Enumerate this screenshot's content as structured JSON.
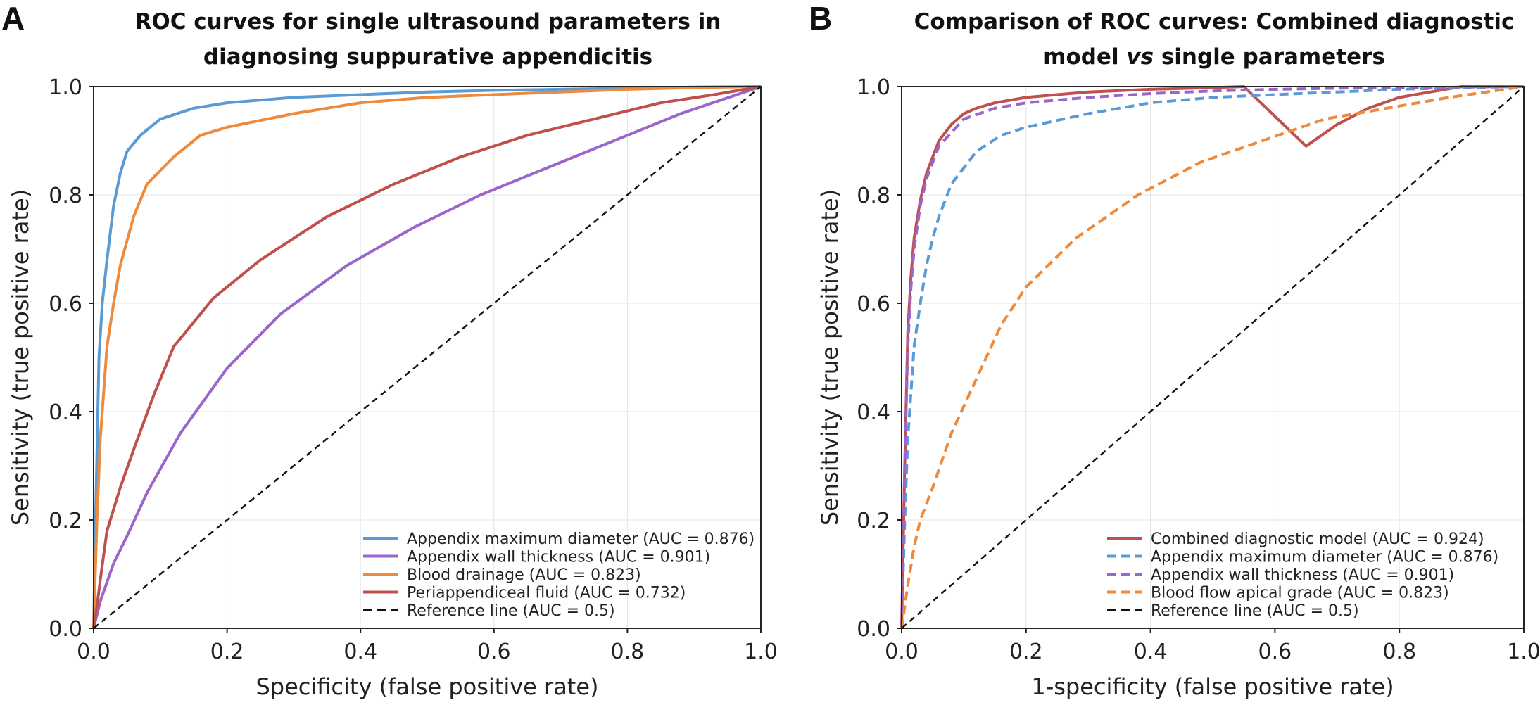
{
  "chart_data": [
    {
      "type": "line",
      "panel_label": "A",
      "title_lines": [
        "ROC curves for single ultrasound parameters in",
        "diagnosing suppurative appendicitis"
      ],
      "xlabel": "Specificity (false positive rate)",
      "ylabel": "Sensitivity (true positive rate)",
      "xlim": [
        0,
        1
      ],
      "ylim": [
        0,
        1
      ],
      "xticks": [
        "0.0",
        "0.2",
        "0.4",
        "0.6",
        "0.8",
        "1.0"
      ],
      "yticks": [
        "0.0",
        "0.2",
        "0.4",
        "0.6",
        "0.8",
        "1.0"
      ],
      "grid": true,
      "legend_position": "lower-right",
      "series": [
        {
          "name": "Appendix maximum diameter (AUC = 0.876)",
          "color": "#5b9bd5",
          "dash": "solid",
          "x": [
            0,
            0.003,
            0.008,
            0.013,
            0.02,
            0.03,
            0.04,
            0.05,
            0.07,
            0.1,
            0.15,
            0.2,
            0.3,
            0.4,
            0.5,
            0.6,
            0.7,
            0.8,
            0.9,
            1.0
          ],
          "y": [
            0,
            0.2,
            0.5,
            0.6,
            0.68,
            0.78,
            0.84,
            0.88,
            0.91,
            0.94,
            0.96,
            0.97,
            0.98,
            0.985,
            0.99,
            0.993,
            0.995,
            0.997,
            0.999,
            1.0
          ]
        },
        {
          "name": "Appendix wall thickness (AUC = 0.901)",
          "color": "#9966cc",
          "dash": "solid",
          "x": [
            0,
            0.01,
            0.03,
            0.05,
            0.08,
            0.13,
            0.2,
            0.28,
            0.38,
            0.48,
            0.58,
            0.68,
            0.78,
            0.88,
            1.0
          ],
          "y": [
            0,
            0.05,
            0.12,
            0.17,
            0.25,
            0.36,
            0.48,
            0.58,
            0.67,
            0.74,
            0.8,
            0.85,
            0.9,
            0.95,
            1.0
          ]
        },
        {
          "name": "Blood drainage (AUC = 0.823)",
          "color": "#ee8a3c",
          "dash": "solid",
          "x": [
            0,
            0.005,
            0.01,
            0.02,
            0.03,
            0.04,
            0.06,
            0.08,
            0.12,
            0.16,
            0.2,
            0.3,
            0.4,
            0.5,
            0.6,
            0.7,
            0.8,
            0.9,
            1.0
          ],
          "y": [
            0,
            0.2,
            0.35,
            0.52,
            0.6,
            0.67,
            0.76,
            0.82,
            0.87,
            0.91,
            0.925,
            0.95,
            0.97,
            0.98,
            0.985,
            0.99,
            0.995,
            0.998,
            1.0
          ]
        },
        {
          "name": "Periappendiceal fluid (AUC = 0.732)",
          "color": "#c0504d",
          "dash": "solid",
          "x": [
            0,
            0.005,
            0.01,
            0.02,
            0.04,
            0.06,
            0.09,
            0.12,
            0.18,
            0.25,
            0.35,
            0.45,
            0.55,
            0.65,
            0.75,
            0.85,
            0.93,
            1.0
          ],
          "y": [
            0,
            0.04,
            0.09,
            0.18,
            0.26,
            0.33,
            0.43,
            0.52,
            0.61,
            0.68,
            0.76,
            0.82,
            0.87,
            0.91,
            0.94,
            0.97,
            0.985,
            1.0
          ]
        },
        {
          "name": "Reference line (AUC = 0.5)",
          "color": "#111111",
          "dash": "dashed",
          "x": [
            0,
            1
          ],
          "y": [
            0,
            1
          ]
        }
      ]
    },
    {
      "type": "line",
      "panel_label": "B",
      "title_lines": [
        "Comparison of ROC curves: Combined diagnostic",
        "model vs single parameters"
      ],
      "title_italic_word": "vs",
      "xlabel": "1-specificity (false positive rate)",
      "ylabel": "Sensitivity (true positive rate)",
      "xlim": [
        0,
        1
      ],
      "ylim": [
        0,
        1
      ],
      "xticks": [
        "0.0",
        "0.2",
        "0.4",
        "0.6",
        "0.8",
        "1.0"
      ],
      "yticks": [
        "0.0",
        "0.2",
        "0.4",
        "0.6",
        "0.8",
        "1.0"
      ],
      "grid": true,
      "legend_position": "lower-right",
      "series": [
        {
          "name": "Combined diagnostic model (AUC = 0.924)",
          "color": "#c0504d",
          "dash": "solid",
          "x": [
            0,
            0.005,
            0.01,
            0.015,
            0.02,
            0.03,
            0.04,
            0.05,
            0.06,
            0.08,
            0.1,
            0.12,
            0.15,
            0.2,
            0.3,
            0.4,
            0.5,
            0.55,
            0.65,
            0.7,
            0.75,
            0.8,
            0.85,
            0.9,
            1.0
          ],
          "y": [
            0,
            0.3,
            0.55,
            0.65,
            0.72,
            0.79,
            0.84,
            0.87,
            0.9,
            0.93,
            0.95,
            0.96,
            0.97,
            0.98,
            0.99,
            0.995,
            0.998,
            1.0,
            0.89,
            0.93,
            0.96,
            0.98,
            0.99,
            1.0,
            1.0
          ]
        },
        {
          "name": "Appendix maximum diameter (AUC = 0.876)",
          "color": "#5b9bd5",
          "dash": "dashed",
          "x": [
            0,
            0.005,
            0.01,
            0.02,
            0.03,
            0.04,
            0.05,
            0.06,
            0.08,
            0.1,
            0.12,
            0.16,
            0.2,
            0.3,
            0.4,
            0.5,
            0.6,
            0.7,
            0.8,
            0.9,
            1.0
          ],
          "y": [
            0,
            0.2,
            0.35,
            0.52,
            0.6,
            0.67,
            0.72,
            0.76,
            0.82,
            0.85,
            0.88,
            0.91,
            0.925,
            0.95,
            0.97,
            0.98,
            0.985,
            0.99,
            0.995,
            0.998,
            1.0
          ]
        },
        {
          "name": "Appendix wall thickness (AUC = 0.901)",
          "color": "#9966cc",
          "dash": "dashed",
          "x": [
            0,
            0.005,
            0.01,
            0.015,
            0.02,
            0.03,
            0.04,
            0.05,
            0.06,
            0.08,
            0.1,
            0.15,
            0.2,
            0.3,
            0.4,
            0.5,
            0.6,
            0.7,
            0.8,
            0.9,
            1.0
          ],
          "y": [
            0,
            0.3,
            0.52,
            0.63,
            0.7,
            0.78,
            0.83,
            0.86,
            0.89,
            0.915,
            0.94,
            0.96,
            0.97,
            0.98,
            0.987,
            0.992,
            0.995,
            0.997,
            0.998,
            0.999,
            1.0
          ]
        },
        {
          "name": "Blood flow apical grade (AUC = 0.823)",
          "color": "#ee8a3c",
          "dash": "dashed",
          "x": [
            0,
            0.01,
            0.02,
            0.03,
            0.05,
            0.08,
            0.12,
            0.16,
            0.2,
            0.28,
            0.38,
            0.48,
            0.58,
            0.68,
            0.78,
            0.88,
            1.0
          ],
          "y": [
            0,
            0.08,
            0.15,
            0.2,
            0.26,
            0.36,
            0.46,
            0.56,
            0.63,
            0.72,
            0.8,
            0.86,
            0.9,
            0.94,
            0.96,
            0.98,
            1.0
          ]
        },
        {
          "name": "Reference line (AUC = 0.5)",
          "color": "#111111",
          "dash": "dashed",
          "x": [
            0,
            1
          ],
          "y": [
            0,
            1
          ]
        }
      ]
    }
  ]
}
